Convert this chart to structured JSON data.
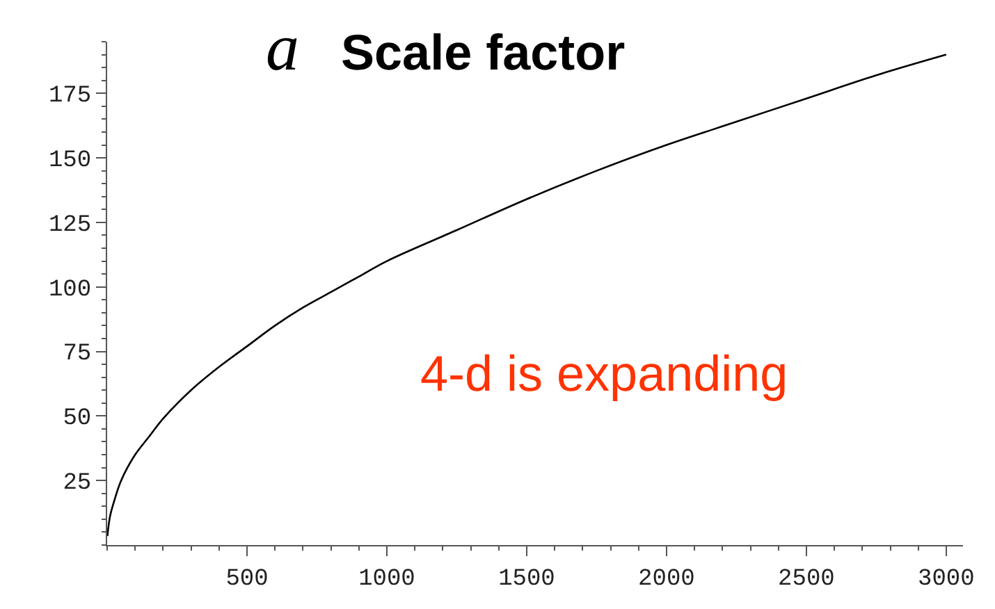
{
  "chart_data": {
    "type": "line",
    "title": "a Scale factor",
    "annotations": [
      "4-d is expanding"
    ],
    "x": [
      1,
      10,
      25,
      50,
      100,
      150,
      200,
      300,
      400,
      500,
      600,
      700,
      800,
      900,
      1000,
      1250,
      1500,
      1750,
      2000,
      2250,
      2500,
      2750,
      3000
    ],
    "series": [
      {
        "color": "#000000",
        "values": [
          3.5,
          11,
          17,
          25,
          35,
          42,
          49,
          60,
          69,
          77,
          85,
          92,
          98,
          104,
          110,
          122,
          134,
          145,
          155,
          164,
          173,
          182,
          190
        ]
      }
    ],
    "xlim": [
      0,
      3060
    ],
    "ylim": [
      0,
      195
    ],
    "xticks": [
      500,
      1000,
      1500,
      2000,
      2500,
      3000
    ],
    "yticks": [
      25,
      50,
      75,
      100,
      125,
      150,
      175
    ],
    "legend": false,
    "marker": "none",
    "line_style": "solid"
  }
}
